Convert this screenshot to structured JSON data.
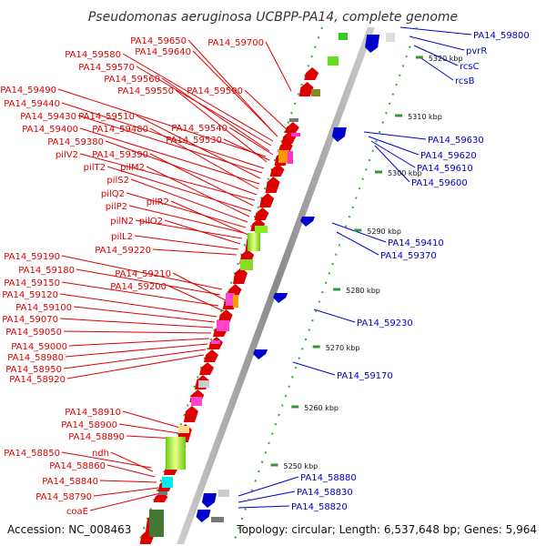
{
  "title": "Pseudomonas aeruginosa UCBPP-PA14, complete genome",
  "footer": {
    "accession": "Accession: NC_008463",
    "topology": "Topology: circular; Length: 6,537,648 bp; Genes: 5,964"
  },
  "colors": {
    "forward_strand": "#dd0000",
    "reverse_strand": "#0000cc",
    "axis": "#999999",
    "tick": "#339933"
  },
  "scale": {
    "unit": "kbp",
    "ticks": [
      {
        "label": "5250 kbp",
        "value": 5250
      },
      {
        "label": "5260 kbp",
        "value": 5260
      },
      {
        "label": "5270 kbp",
        "value": 5270
      },
      {
        "label": "5280 kbp",
        "value": 5280
      },
      {
        "label": "5290 kbp",
        "value": 5290
      },
      {
        "label": "5300 kbp",
        "value": 5300
      },
      {
        "label": "5310 kbp",
        "value": 5310
      },
      {
        "label": "5320 kbp",
        "value": 5320
      }
    ]
  },
  "left_labels": [
    "PA14_59650",
    "PA14_59700",
    "PA14_59640",
    "PA14_59580",
    "PA14_59570",
    "PA14_59560",
    "PA14_59490",
    "PA14_59550",
    "PA14_59590",
    "PA14_59440",
    "PA14_59430",
    "PA14_59510",
    "PA14_59400",
    "PA14_59480",
    "PA14_59540",
    "PA14_59380",
    "PA14_59530",
    "pilV2",
    "PA14_59390",
    "pilT2",
    "pilM2",
    "pilS2",
    "pilQ2",
    "pilR2",
    "pilP2",
    "pilN2",
    "pilO2",
    "pilL2",
    "PA14_59220",
    "PA14_59190",
    "PA14_59180",
    "PA14_59210",
    "PA14_59150",
    "PA14_59200",
    "PA14_59120",
    "PA14_59100",
    "PA14_59070",
    "PA14_59050",
    "PA14_59000",
    "PA14_58980",
    "PA14_58950",
    "PA14_58920",
    "PA14_58910",
    "PA14_58900",
    "PA14_58890",
    "PA14_58850",
    "ndh",
    "PA14_58860",
    "PA14_58840",
    "PA14_58790",
    "coaE"
  ],
  "right_labels": [
    "PA14_59800",
    "pvrR",
    "rcsC",
    "rcsB",
    "PA14_59630",
    "PA14_59620",
    "PA14_59610",
    "PA14_59600",
    "PA14_59410",
    "PA14_59370",
    "PA14_59230",
    "PA14_59170",
    "PA14_58880",
    "PA14_58830",
    "PA14_58820"
  ]
}
